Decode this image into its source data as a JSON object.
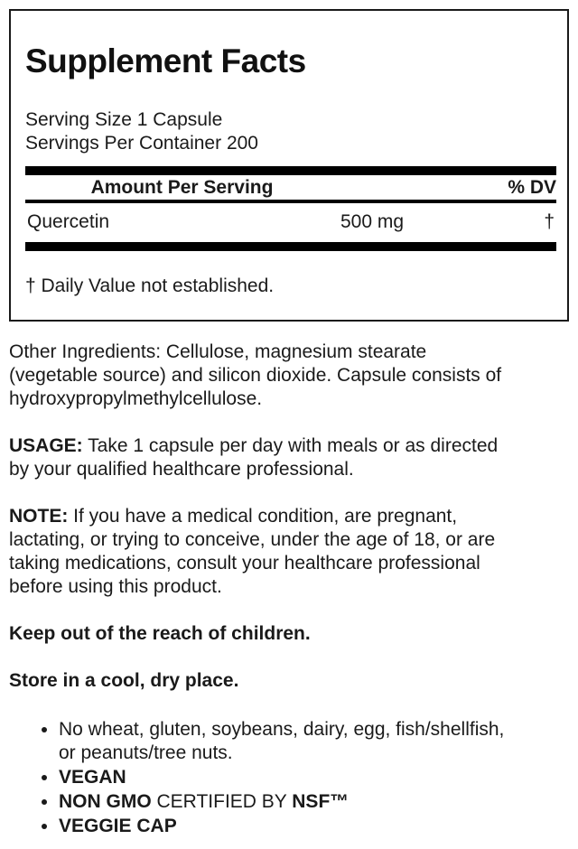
{
  "panel": {
    "title": "Supplement Facts",
    "serving_size": "Serving Size 1 Capsule",
    "servings_per_container": "Servings Per Container 200",
    "table": {
      "amount_header": "Amount Per Serving",
      "dv_header": "% DV",
      "rows": [
        {
          "name": "Quercetin",
          "amount": "500 mg",
          "dv": "†"
        }
      ],
      "footnote": "† Daily Value not established."
    }
  },
  "body": {
    "other_ingredients": "Other Ingredients: Cellulose, magnesium stearate\n(vegetable source) and silicon dioxide. Capsule consists of\nhydroxypropylmethylcellulose.",
    "usage_label": "USAGE:",
    "usage_text": " Take 1 capsule per day with meals or as directed\nby your qualified healthcare professional.",
    "note_label": "NOTE:",
    "note_text": " If you have a medical condition, are pregnant,\nlactating, or trying to conceive, under the age of 18, or are\ntaking medications, consult your healthcare professional\nbefore using this product.",
    "keep_out": "Keep out of the reach of children.",
    "storage": "Store in a cool, dry place.",
    "bullets": {
      "allergens": "No wheat, gluten, soybeans, dairy, egg, fish/shellfish,\nor peanuts/tree nuts.",
      "vegan": "VEGAN",
      "non_gmo_bold": "NON GMO",
      "non_gmo_mid": " CERTIFIED BY ",
      "non_gmo_cert": "NSF™",
      "veggie_cap": "VEGGIE CAP"
    }
  },
  "colors": {
    "text": "#1a1a1a",
    "bar": "#000000",
    "border": "#1a1a1a",
    "background": "#ffffff"
  }
}
